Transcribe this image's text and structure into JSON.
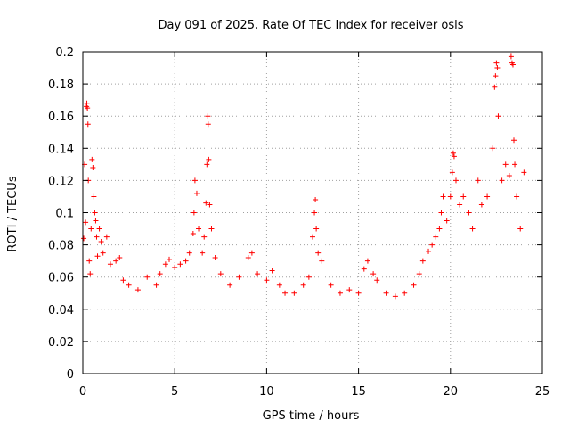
{
  "chart_data": {
    "type": "scatter",
    "title": "Day 091 of 2025, Rate Of TEC Index for receiver osls",
    "xlabel": "GPS time / hours",
    "ylabel": "ROTI / TECUs",
    "xlim": [
      0,
      25
    ],
    "ylim": [
      0,
      0.2
    ],
    "x_ticks": [
      0,
      5,
      10,
      15,
      20,
      25
    ],
    "x_tick_labels": [
      "0",
      "5",
      "10",
      "15",
      "20",
      "25"
    ],
    "y_ticks": [
      0,
      0.02,
      0.04,
      0.06,
      0.08,
      0.1,
      0.12,
      0.14,
      0.16,
      0.18,
      0.2
    ],
    "y_tick_labels": [
      "0",
      "0.02",
      "0.04",
      "0.06",
      "0.08",
      "0.1",
      "0.12",
      "0.14",
      "0.16",
      "0.18",
      "0.2"
    ],
    "grid": true,
    "marker": "plus",
    "series_color": "#ff0000",
    "series": [
      {
        "name": "ROTI",
        "points": [
          [
            0.05,
            0.084
          ],
          [
            0.1,
            0.13
          ],
          [
            0.15,
            0.094
          ],
          [
            0.2,
            0.166
          ],
          [
            0.22,
            0.168
          ],
          [
            0.25,
            0.165
          ],
          [
            0.28,
            0.155
          ],
          [
            0.3,
            0.12
          ],
          [
            0.35,
            0.07
          ],
          [
            0.4,
            0.062
          ],
          [
            0.45,
            0.09
          ],
          [
            0.5,
            0.133
          ],
          [
            0.55,
            0.128
          ],
          [
            0.6,
            0.11
          ],
          [
            0.65,
            0.1
          ],
          [
            0.7,
            0.095
          ],
          [
            0.75,
            0.085
          ],
          [
            0.8,
            0.073
          ],
          [
            0.9,
            0.09
          ],
          [
            1.0,
            0.082
          ],
          [
            1.1,
            0.075
          ],
          [
            1.3,
            0.085
          ],
          [
            1.5,
            0.068
          ],
          [
            1.8,
            0.07
          ],
          [
            2.0,
            0.072
          ],
          [
            2.2,
            0.058
          ],
          [
            2.5,
            0.055
          ],
          [
            3.0,
            0.052
          ],
          [
            3.5,
            0.06
          ],
          [
            4.0,
            0.055
          ],
          [
            4.2,
            0.062
          ],
          [
            4.5,
            0.068
          ],
          [
            4.7,
            0.071
          ],
          [
            5.0,
            0.066
          ],
          [
            5.3,
            0.068
          ],
          [
            5.6,
            0.07
          ],
          [
            5.8,
            0.075
          ],
          [
            6.0,
            0.087
          ],
          [
            6.05,
            0.1
          ],
          [
            6.1,
            0.12
          ],
          [
            6.2,
            0.112
          ],
          [
            6.3,
            0.09
          ],
          [
            6.5,
            0.075
          ],
          [
            6.6,
            0.085
          ],
          [
            6.7,
            0.106
          ],
          [
            6.75,
            0.13
          ],
          [
            6.8,
            0.16
          ],
          [
            6.82,
            0.155
          ],
          [
            6.85,
            0.133
          ],
          [
            6.9,
            0.105
          ],
          [
            7.0,
            0.09
          ],
          [
            7.2,
            0.072
          ],
          [
            7.5,
            0.062
          ],
          [
            8.0,
            0.055
          ],
          [
            8.5,
            0.06
          ],
          [
            9.0,
            0.072
          ],
          [
            9.2,
            0.075
          ],
          [
            9.5,
            0.062
          ],
          [
            10.0,
            0.058
          ],
          [
            10.3,
            0.064
          ],
          [
            10.7,
            0.055
          ],
          [
            11.0,
            0.05
          ],
          [
            11.5,
            0.05
          ],
          [
            12.0,
            0.055
          ],
          [
            12.3,
            0.06
          ],
          [
            12.5,
            0.085
          ],
          [
            12.6,
            0.1
          ],
          [
            12.65,
            0.108
          ],
          [
            12.7,
            0.09
          ],
          [
            12.8,
            0.075
          ],
          [
            13.0,
            0.07
          ],
          [
            13.5,
            0.055
          ],
          [
            14.0,
            0.05
          ],
          [
            14.5,
            0.052
          ],
          [
            15.0,
            0.05
          ],
          [
            15.3,
            0.065
          ],
          [
            15.5,
            0.07
          ],
          [
            15.8,
            0.062
          ],
          [
            16.0,
            0.058
          ],
          [
            16.5,
            0.05
          ],
          [
            17.0,
            0.048
          ],
          [
            17.5,
            0.05
          ],
          [
            18.0,
            0.055
          ],
          [
            18.3,
            0.062
          ],
          [
            18.5,
            0.07
          ],
          [
            18.8,
            0.076
          ],
          [
            19.0,
            0.08
          ],
          [
            19.2,
            0.085
          ],
          [
            19.4,
            0.09
          ],
          [
            19.5,
            0.1
          ],
          [
            19.6,
            0.11
          ],
          [
            19.8,
            0.095
          ],
          [
            20.0,
            0.11
          ],
          [
            20.1,
            0.125
          ],
          [
            20.15,
            0.137
          ],
          [
            20.2,
            0.135
          ],
          [
            20.3,
            0.12
          ],
          [
            20.5,
            0.105
          ],
          [
            20.7,
            0.11
          ],
          [
            21.0,
            0.1
          ],
          [
            21.2,
            0.09
          ],
          [
            21.5,
            0.12
          ],
          [
            21.7,
            0.105
          ],
          [
            22.0,
            0.11
          ],
          [
            22.3,
            0.14
          ],
          [
            22.4,
            0.178
          ],
          [
            22.45,
            0.185
          ],
          [
            22.5,
            0.193
          ],
          [
            22.55,
            0.19
          ],
          [
            22.6,
            0.16
          ],
          [
            22.8,
            0.12
          ],
          [
            23.0,
            0.13
          ],
          [
            23.2,
            0.123
          ],
          [
            23.3,
            0.197
          ],
          [
            23.35,
            0.193
          ],
          [
            23.4,
            0.192
          ],
          [
            23.45,
            0.145
          ],
          [
            23.5,
            0.13
          ],
          [
            23.6,
            0.11
          ],
          [
            23.8,
            0.09
          ],
          [
            24.0,
            0.125
          ]
        ]
      }
    ]
  }
}
